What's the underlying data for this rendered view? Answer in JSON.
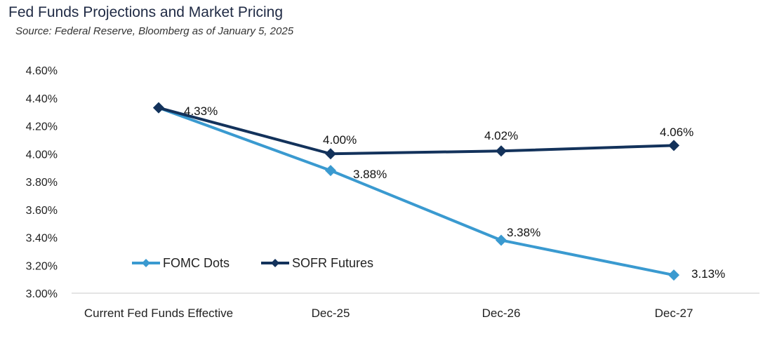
{
  "header": {
    "title": "Fed Funds Projections and Market Pricing",
    "subtitle": "Source: Federal Reserve, Bloomberg as of January 5, 2025"
  },
  "chart_data": {
    "type": "line",
    "title": "Fed Funds Projections and Market Pricing",
    "subtitle": "Source: Federal Reserve, Bloomberg as of January 5, 2025",
    "categories": [
      "Current Fed Funds Effective",
      "Dec-25",
      "Dec-26",
      "Dec-27"
    ],
    "ylim": [
      3.0,
      4.6
    ],
    "yticks": [
      "3.00%",
      "3.20%",
      "3.40%",
      "3.60%",
      "3.80%",
      "4.00%",
      "4.20%",
      "4.40%",
      "4.60%"
    ],
    "grid": false,
    "legend_position": "bottom-left",
    "series": [
      {
        "name": "FOMC Dots",
        "values": [
          4.33,
          3.88,
          3.38,
          3.13
        ],
        "labels": [
          "",
          "3.88%",
          "3.38%",
          "3.13%"
        ],
        "color": "#3a9ad0"
      },
      {
        "name": "SOFR Futures",
        "values": [
          4.33,
          4.0,
          4.02,
          4.06
        ],
        "labels": [
          "4.33%",
          "4.00%",
          "4.02%",
          "4.06%"
        ],
        "color": "#13325b"
      }
    ]
  }
}
